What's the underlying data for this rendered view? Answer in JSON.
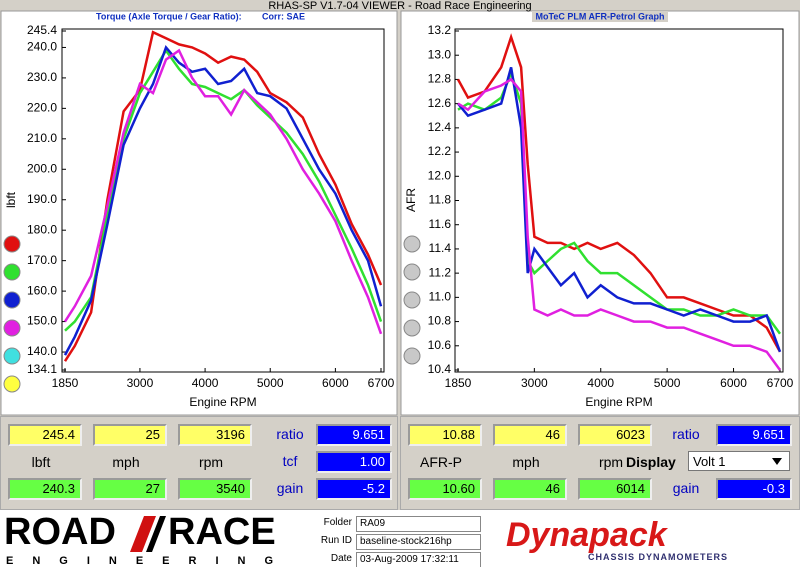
{
  "window_title": "RHAS-SP V1.7-04  VIEWER - Road Race Engineering",
  "chart_data": [
    {
      "type": "line",
      "title": "Torque (Axle Torque / Gear Ratio):",
      "subtitle": "Corr: SAE",
      "x_label": "Engine RPM",
      "y_label": "lbft",
      "x": [
        1850,
        2000,
        2250,
        2500,
        2750,
        3000,
        3200,
        3400,
        3600,
        3800,
        4000,
        4200,
        4400,
        4600,
        4800,
        5000,
        5250,
        5500,
        5750,
        6000,
        6250,
        6500,
        6700
      ],
      "series": [
        {
          "color": "#e01010",
          "values": [
            137,
            142,
            153,
            190,
            219,
            226,
            245,
            243,
            241,
            240,
            238,
            235,
            237,
            236,
            232,
            225,
            222,
            217,
            205,
            195,
            182,
            172,
            162
          ]
        },
        {
          "color": "#30e030",
          "values": [
            147,
            150,
            158,
            185,
            210,
            225,
            232,
            239,
            233,
            228,
            227,
            225,
            223,
            226,
            221,
            217,
            212,
            205,
            196,
            185,
            174,
            162,
            150
          ]
        },
        {
          "color": "#1020d0",
          "values": [
            139,
            145,
            157,
            182,
            208,
            220,
            228,
            240,
            235,
            232,
            233,
            228,
            229,
            233,
            225,
            224,
            220,
            210,
            200,
            192,
            180,
            170,
            155
          ]
        },
        {
          "color": "#e020e0",
          "values": [
            150,
            155,
            165,
            188,
            212,
            228,
            225,
            236,
            239,
            230,
            224,
            224,
            218,
            226,
            222,
            218,
            210,
            200,
            192,
            183,
            170,
            158,
            146
          ]
        }
      ],
      "xlim": [
        1850,
        6700
      ],
      "xticks": [
        1850,
        3000,
        4000,
        5000,
        6000,
        6700
      ],
      "ylim": [
        134.1,
        245.4
      ],
      "yticks": [
        245.4,
        {
          "value": 240,
          "label": "240.0"
        },
        {
          "value": 230,
          "label": "230.0"
        },
        {
          "value": 220,
          "label": "220.0"
        },
        {
          "value": 210,
          "label": "210.0"
        },
        {
          "value": 200,
          "label": "200.0"
        },
        {
          "value": 190,
          "label": "190.0"
        },
        {
          "value": 180,
          "label": "180.0"
        },
        {
          "value": 170,
          "label": "170.0"
        },
        {
          "value": 160,
          "label": "160.0"
        },
        {
          "value": 150,
          "label": "150.0"
        },
        {
          "value": 140,
          "label": "140.0"
        },
        134.1
      ]
    },
    {
      "type": "line",
      "title": "MoTeC PLM AFR-Petrol Graph",
      "x_label": "Engine RPM",
      "y_label": "AFR",
      "x": [
        1850,
        2000,
        2250,
        2500,
        2650,
        2800,
        2900,
        3000,
        3200,
        3400,
        3600,
        3800,
        4000,
        4250,
        4500,
        4750,
        5000,
        5250,
        5500,
        5750,
        6000,
        6250,
        6500,
        6700
      ],
      "series": [
        {
          "color": "#e01010",
          "values": [
            12.8,
            12.65,
            12.7,
            12.9,
            13.15,
            12.9,
            12.1,
            11.5,
            11.45,
            11.45,
            11.4,
            11.45,
            11.4,
            11.45,
            11.35,
            11.2,
            11.0,
            11.0,
            10.95,
            10.9,
            10.85,
            10.85,
            10.75,
            10.55
          ]
        },
        {
          "color": "#30e030",
          "values": [
            12.55,
            12.6,
            12.55,
            12.65,
            12.85,
            12.6,
            11.3,
            11.2,
            11.3,
            11.4,
            11.45,
            11.3,
            11.2,
            11.2,
            11.1,
            11.0,
            10.9,
            10.9,
            10.85,
            10.85,
            10.9,
            10.85,
            10.85,
            10.7
          ]
        },
        {
          "color": "#1020d0",
          "values": [
            12.6,
            12.5,
            12.55,
            12.6,
            12.9,
            12.4,
            11.2,
            11.4,
            11.25,
            11.1,
            11.2,
            11.0,
            11.1,
            11.0,
            10.95,
            10.95,
            10.9,
            10.85,
            10.9,
            10.85,
            10.8,
            10.8,
            10.85,
            10.55
          ]
        },
        {
          "color": "#e020e0",
          "values": [
            12.6,
            12.55,
            12.7,
            12.75,
            12.8,
            12.7,
            11.5,
            10.9,
            10.85,
            10.9,
            10.85,
            10.85,
            10.9,
            10.85,
            10.8,
            10.8,
            10.75,
            10.75,
            10.7,
            10.65,
            10.6,
            10.6,
            10.55,
            10.4
          ]
        }
      ],
      "xlim": [
        1850,
        6700
      ],
      "xticks": [
        1850,
        3000,
        4000,
        5000,
        6000,
        6700
      ],
      "ylim": [
        10.4,
        13.2
      ],
      "yticks": [
        13.2,
        {
          "value": 13,
          "label": "13.0"
        },
        12.8,
        12.6,
        12.4,
        12.2,
        {
          "value": 12,
          "label": "12.0"
        },
        11.8,
        11.6,
        11.4,
        11.2,
        {
          "value": 11,
          "label": "11.0"
        },
        10.8,
        10.6,
        10.4
      ]
    }
  ],
  "readouts": [
    {
      "top": [
        "245.4",
        "25",
        "3196"
      ],
      "units": [
        "lbft",
        "mph",
        "rpm"
      ],
      "bottom": [
        "240.3",
        "27",
        "3540"
      ],
      "side_labels": [
        "ratio",
        "tcf",
        "gain"
      ],
      "side_values": [
        "9.651",
        "1.00",
        "-5.2"
      ]
    },
    {
      "top": [
        "10.88",
        "46",
        "6023"
      ],
      "units": [
        "AFR-P",
        "mph",
        "rpm"
      ],
      "bottom": [
        "10.60",
        "46",
        "6014"
      ],
      "side_labels": [
        "ratio",
        "Display",
        "gain"
      ],
      "side_values": [
        "9.651",
        "Volt 1",
        "-0.3"
      ]
    }
  ],
  "run_info": {
    "folder_label": "Folder",
    "folder": "RA09",
    "run_label": "Run ID",
    "run": "baseline-stock216hp",
    "date_label": "Date",
    "date": "03-Aug-2009  17:32:11"
  },
  "logos": {
    "road": "ROAD",
    "race": "RACE",
    "engineering": "ENGINEERING",
    "brand": "Dynapack",
    "brand_sub": "CHASSIS DYNAMOMETERS"
  }
}
